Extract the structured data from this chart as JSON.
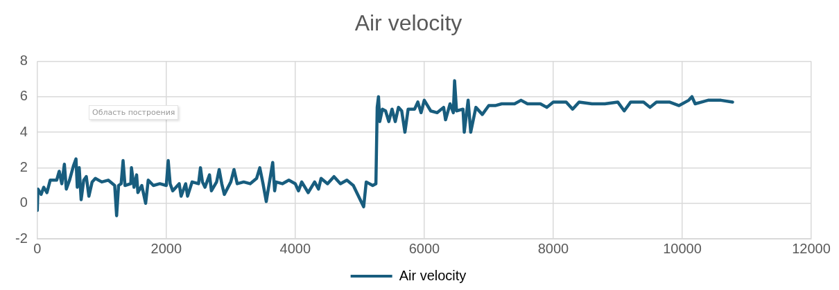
{
  "chart_data": {
    "type": "line",
    "title": "Air velocity",
    "annotations": [
      "Область построения"
    ],
    "xlim": [
      0,
      12000
    ],
    "xticks": [
      0,
      2000,
      4000,
      6000,
      8000,
      10000,
      12000
    ],
    "ylim": [
      -2,
      8
    ],
    "yticks": [
      -2,
      0,
      2,
      4,
      6,
      8
    ],
    "grid": true,
    "legend": "bottom",
    "marker": "none",
    "line_style": "solid",
    "x": [
      0,
      10,
      60,
      100,
      150,
      200,
      300,
      340,
      380,
      420,
      450,
      500,
      560,
      600,
      620,
      650,
      680,
      720,
      760,
      800,
      850,
      900,
      1000,
      1100,
      1200,
      1230,
      1260,
      1300,
      1330,
      1360,
      1450,
      1460,
      1500,
      1540,
      1560,
      1620,
      1680,
      1720,
      1800,
      1900,
      2000,
      2030,
      2060,
      2100,
      2200,
      2230,
      2300,
      2330,
      2400,
      2500,
      2530,
      2560,
      2600,
      2670,
      2700,
      2780,
      2820,
      2860,
      2900,
      3000,
      3050,
      3100,
      3200,
      3300,
      3400,
      3450,
      3500,
      3550,
      3600,
      3650,
      3680,
      3700,
      3800,
      3900,
      4000,
      4050,
      4100,
      4200,
      4300,
      4360,
      4400,
      4500,
      4600,
      4700,
      4800,
      4900,
      5060,
      5100,
      5200,
      5250,
      5270,
      5290,
      5310,
      5350,
      5400,
      5450,
      5500,
      5550,
      5600,
      5650,
      5700,
      5750,
      5850,
      5900,
      5950,
      6000,
      6100,
      6200,
      6300,
      6330,
      6400,
      6450,
      6470,
      6500,
      6600,
      6620,
      6680,
      6720,
      6800,
      6900,
      7000,
      7100,
      7200,
      7400,
      7500,
      7600,
      7800,
      7900,
      8000,
      8200,
      8300,
      8400,
      8600,
      8800,
      9000,
      9100,
      9200,
      9400,
      9500,
      9600,
      9800,
      9950,
      10100,
      10150,
      10200,
      10400,
      10600,
      10780
    ],
    "series": [
      {
        "name": "Air velocity",
        "color": "#185d7e",
        "values": [
          -0.4,
          0.8,
          0.5,
          0.9,
          0.6,
          1.3,
          1.3,
          1.8,
          1.1,
          2.2,
          0.8,
          1.3,
          2.1,
          2.5,
          0.9,
          2.0,
          0.2,
          1.3,
          1.5,
          0.4,
          1.2,
          1.4,
          1.2,
          1.3,
          1.0,
          -0.7,
          1.0,
          1.1,
          2.4,
          1.0,
          1.1,
          2.0,
          0.9,
          1.6,
          0.6,
          1.0,
          0.0,
          1.3,
          1.0,
          1.1,
          1.0,
          2.4,
          1.1,
          0.7,
          1.1,
          0.4,
          1.1,
          0.4,
          1.2,
          1.1,
          2.0,
          1.2,
          0.9,
          1.6,
          0.7,
          1.2,
          1.9,
          1.1,
          0.5,
          1.2,
          1.9,
          1.1,
          1.2,
          1.1,
          1.4,
          2.0,
          1.1,
          0.1,
          1.2,
          2.3,
          0.7,
          1.2,
          1.1,
          1.3,
          1.1,
          0.7,
          1.2,
          0.6,
          1.2,
          0.8,
          1.4,
          1.1,
          1.5,
          1.1,
          1.3,
          1.0,
          -0.2,
          1.2,
          1.0,
          1.1,
          5.4,
          6.0,
          4.6,
          5.3,
          5.2,
          4.6,
          5.3,
          4.6,
          5.4,
          5.2,
          4.0,
          5.3,
          5.3,
          5.7,
          5.1,
          5.8,
          5.2,
          5.1,
          5.4,
          4.7,
          5.6,
          5.1,
          6.9,
          5.2,
          5.3,
          4.0,
          5.8,
          4.0,
          5.4,
          5.0,
          5.5,
          5.5,
          5.6,
          5.6,
          5.8,
          5.6,
          5.6,
          5.4,
          5.7,
          5.7,
          5.3,
          5.7,
          5.6,
          5.6,
          5.7,
          5.2,
          5.7,
          5.7,
          5.4,
          5.7,
          5.7,
          5.5,
          5.8,
          6.0,
          5.6,
          5.8,
          5.8,
          5.7
        ]
      }
    ]
  }
}
